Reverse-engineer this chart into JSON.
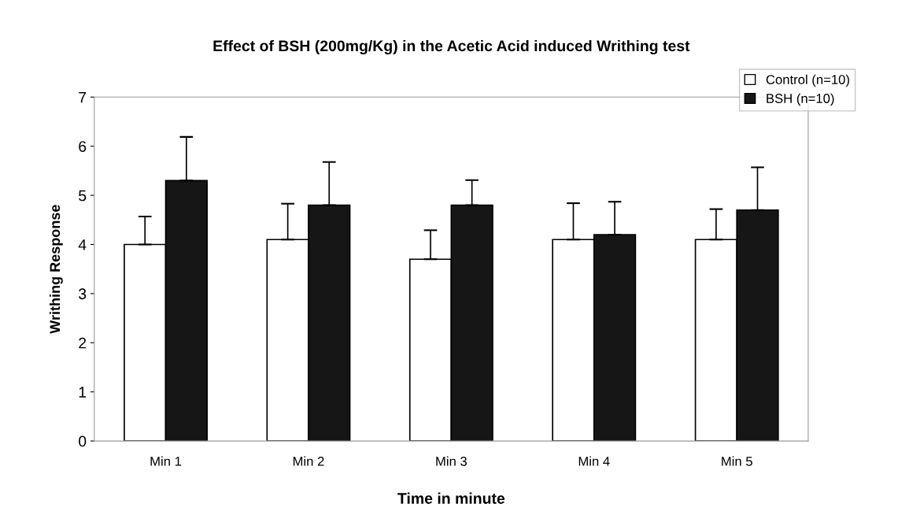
{
  "chart_data": {
    "type": "bar",
    "title": "Effect of BSH (200mg/Kg) in the Acetic Acid induced Writhing test",
    "xlabel": "Time in minute",
    "ylabel": "Writhing Response",
    "categories": [
      "Min 1",
      "Min 2",
      "Min 3",
      "Min 4",
      "Min 5"
    ],
    "series": [
      {
        "name": "Control (n=10)",
        "color": "#ffffff",
        "values": [
          4.0,
          4.1,
          3.7,
          4.1,
          4.1
        ],
        "errors": [
          [
            4.0,
            4.57
          ],
          [
            4.1,
            4.83
          ],
          [
            3.7,
            4.29
          ],
          [
            4.1,
            4.84
          ],
          [
            4.1,
            4.72
          ]
        ]
      },
      {
        "name": "BSH (n=10)",
        "color": "#161616",
        "values": [
          5.3,
          4.8,
          4.8,
          4.2,
          4.7
        ],
        "errors": [
          [
            5.3,
            6.19
          ],
          [
            4.8,
            5.68
          ],
          [
            4.8,
            5.31
          ],
          [
            4.2,
            4.87
          ],
          [
            4.7,
            5.57
          ]
        ]
      }
    ],
    "ylim": [
      0,
      7
    ],
    "yticks": [
      0,
      1,
      2,
      3,
      4,
      5,
      6,
      7
    ],
    "grid": false,
    "legend": "top right"
  }
}
